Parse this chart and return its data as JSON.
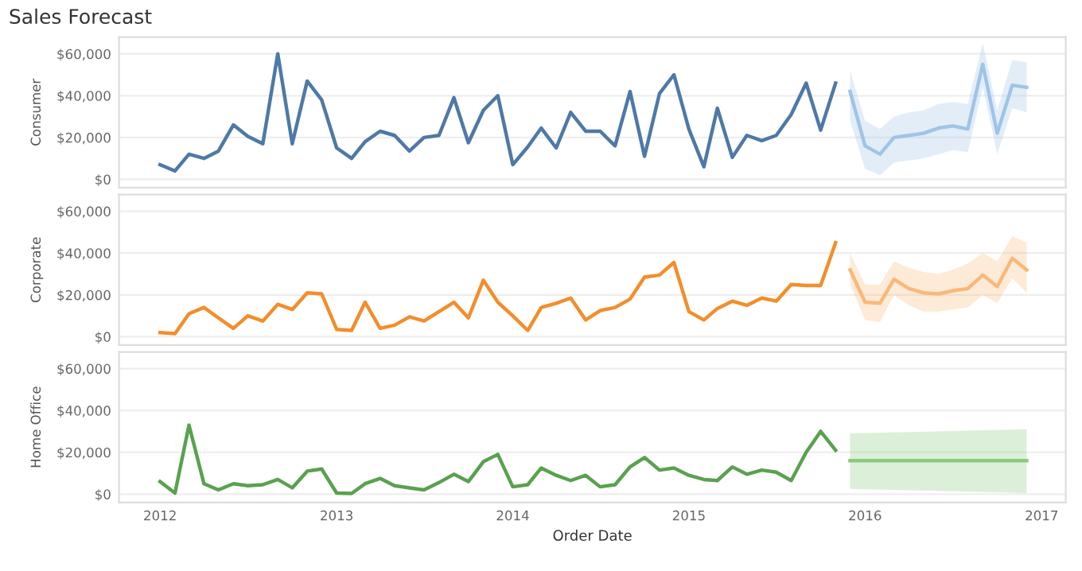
{
  "chart_data": [
    {
      "type": "line",
      "title": "Sales Forecast",
      "ylabel": "Consumer",
      "tick_labels": "y",
      "grid": "y",
      "legend": false,
      "xlim": [
        "2011-10-08",
        "2017-02-20"
      ],
      "xticks": [
        "2012",
        "2013",
        "2014",
        "2015",
        "2016",
        "2017"
      ],
      "ylim": [
        -4000,
        68000
      ],
      "yticks": [
        {
          "value": 0,
          "label": "$0"
        },
        {
          "value": 20000,
          "label": "$20,000"
        },
        {
          "value": 40000,
          "label": "$40,000"
        },
        {
          "value": 60000,
          "label": "$60,000"
        }
      ],
      "series": [
        {
          "color": "#4e79a7",
          "x": [
            "2012-01",
            "2012-02",
            "2012-03",
            "2012-04",
            "2012-05",
            "2012-06",
            "2012-07",
            "2012-08",
            "2012-09",
            "2012-10",
            "2012-11",
            "2012-12",
            "2013-01",
            "2013-02",
            "2013-03",
            "2013-04",
            "2013-05",
            "2013-06",
            "2013-07",
            "2013-08",
            "2013-09",
            "2013-10",
            "2013-11",
            "2013-12",
            "2014-01",
            "2014-02",
            "2014-03",
            "2014-04",
            "2014-05",
            "2014-06",
            "2014-07",
            "2014-08",
            "2014-09",
            "2014-10",
            "2014-11",
            "2014-12",
            "2015-01",
            "2015-02",
            "2015-03",
            "2015-04",
            "2015-05",
            "2015-06",
            "2015-07",
            "2015-08",
            "2015-09",
            "2015-10",
            "2015-11"
          ],
          "values": [
            7000,
            4000,
            12000,
            10000,
            13500,
            26000,
            20500,
            17000,
            60000,
            17000,
            47000,
            38000,
            15000,
            10000,
            18000,
            23000,
            21000,
            13500,
            20000,
            21000,
            39000,
            17500,
            33000,
            40000,
            7000,
            15500,
            24500,
            15000,
            32000,
            23000,
            23000,
            16000,
            42000,
            11000,
            41000,
            50000,
            24000,
            6000,
            34000,
            10500,
            21000,
            18500,
            21000,
            31000,
            46000,
            23500,
            46000
          ]
        },
        {
          "color": "#a0c4e8",
          "x": [
            "2015-12",
            "2016-01",
            "2016-02",
            "2016-03",
            "2016-04",
            "2016-05",
            "2016-06",
            "2016-07",
            "2016-08",
            "2016-09",
            "2016-10",
            "2016-11",
            "2016-12"
          ],
          "values": [
            42000,
            16000,
            12000,
            20000,
            21000,
            22000,
            24500,
            25500,
            24000,
            55000,
            22000,
            45000,
            44000
          ],
          "lower": [
            28000,
            5000,
            2000,
            8000,
            9000,
            10000,
            12000,
            14000,
            13000,
            44000,
            12000,
            34000,
            32000
          ],
          "upper": [
            52000,
            28000,
            24000,
            30000,
            32000,
            33000,
            36000,
            37000,
            36000,
            65000,
            33000,
            57000,
            56000
          ]
        }
      ]
    },
    {
      "type": "line",
      "ylabel": "Corporate",
      "tick_labels": "y",
      "grid": "y",
      "legend": false,
      "xlim": [
        "2011-10-08",
        "2017-02-20"
      ],
      "xticks": [
        "2012",
        "2013",
        "2014",
        "2015",
        "2016",
        "2017"
      ],
      "ylim": [
        -4000,
        68000
      ],
      "yticks": [
        {
          "value": 0,
          "label": "$0"
        },
        {
          "value": 20000,
          "label": "$20,000"
        },
        {
          "value": 40000,
          "label": "$40,000"
        },
        {
          "value": 60000,
          "label": "$60,000"
        }
      ],
      "series": [
        {
          "color": "#f28e2b",
          "x": [
            "2012-01",
            "2012-02",
            "2012-03",
            "2012-04",
            "2012-05",
            "2012-06",
            "2012-07",
            "2012-08",
            "2012-09",
            "2012-10",
            "2012-11",
            "2012-12",
            "2013-01",
            "2013-02",
            "2013-03",
            "2013-04",
            "2013-05",
            "2013-06",
            "2013-07",
            "2013-08",
            "2013-09",
            "2013-10",
            "2013-11",
            "2013-12",
            "2014-01",
            "2014-02",
            "2014-03",
            "2014-04",
            "2014-05",
            "2014-06",
            "2014-07",
            "2014-08",
            "2014-09",
            "2014-10",
            "2014-11",
            "2014-12",
            "2015-01",
            "2015-02",
            "2015-03",
            "2015-04",
            "2015-05",
            "2015-06",
            "2015-07",
            "2015-08",
            "2015-09",
            "2015-10",
            "2015-11"
          ],
          "values": [
            2000,
            1500,
            11000,
            14000,
            9000,
            4000,
            10000,
            7500,
            15500,
            13000,
            21000,
            20500,
            3500,
            3000,
            16500,
            4000,
            5500,
            9500,
            7500,
            12000,
            16500,
            9000,
            27000,
            16500,
            10000,
            3000,
            14000,
            16000,
            18500,
            8000,
            12500,
            14000,
            18000,
            28500,
            29500,
            35500,
            12000,
            8000,
            13500,
            17000,
            15000,
            18500,
            17000,
            25000,
            24500,
            24500,
            45000
          ]
        },
        {
          "color": "#f7b97a",
          "x": [
            "2015-12",
            "2016-01",
            "2016-02",
            "2016-03",
            "2016-04",
            "2016-05",
            "2016-06",
            "2016-07",
            "2016-08",
            "2016-09",
            "2016-10",
            "2016-11",
            "2016-12"
          ],
          "values": [
            32000,
            16500,
            16000,
            27500,
            23000,
            21000,
            20500,
            22000,
            23000,
            29500,
            24000,
            37500,
            32000
          ],
          "lower": [
            25000,
            8000,
            7000,
            20000,
            15000,
            12000,
            12000,
            13000,
            14000,
            20000,
            16000,
            28000,
            21000
          ],
          "upper": [
            40000,
            25000,
            25000,
            36000,
            33000,
            31000,
            30000,
            32000,
            35000,
            40000,
            36000,
            48000,
            45000
          ]
        }
      ]
    },
    {
      "type": "line",
      "ylabel": "Home Office",
      "xlabel": "Order Date",
      "grid": "y",
      "legend": false,
      "xlim": [
        "2011-10-08",
        "2017-02-20"
      ],
      "xticks": [
        "2012",
        "2013",
        "2014",
        "2015",
        "2016",
        "2017"
      ],
      "ylim": [
        -4000,
        68000
      ],
      "yticks": [
        {
          "value": 0,
          "label": "$0"
        },
        {
          "value": 20000,
          "label": "$20,000"
        },
        {
          "value": 40000,
          "label": "$40,000"
        },
        {
          "value": 60000,
          "label": "$60,000"
        }
      ],
      "series": [
        {
          "color": "#59a14f",
          "x": [
            "2012-01",
            "2012-02",
            "2012-03",
            "2012-04",
            "2012-05",
            "2012-06",
            "2012-07",
            "2012-08",
            "2012-09",
            "2012-10",
            "2012-11",
            "2012-12",
            "2013-01",
            "2013-02",
            "2013-03",
            "2013-04",
            "2013-05",
            "2013-06",
            "2013-07",
            "2013-08",
            "2013-09",
            "2013-10",
            "2013-11",
            "2013-12",
            "2014-01",
            "2014-02",
            "2014-03",
            "2014-04",
            "2014-05",
            "2014-06",
            "2014-07",
            "2014-08",
            "2014-09",
            "2014-10",
            "2014-11",
            "2014-12",
            "2015-01",
            "2015-02",
            "2015-03",
            "2015-04",
            "2015-05",
            "2015-06",
            "2015-07",
            "2015-08",
            "2015-09",
            "2015-10",
            "2015-11"
          ],
          "values": [
            6000,
            500,
            33000,
            5000,
            2000,
            5000,
            4000,
            4500,
            7000,
            3000,
            11000,
            12000,
            500,
            300,
            5000,
            7500,
            4000,
            3000,
            2000,
            5500,
            9500,
            6000,
            15500,
            19000,
            3500,
            4500,
            12500,
            9000,
            6500,
            9000,
            3500,
            4500,
            13000,
            17500,
            11500,
            12500,
            9000,
            7000,
            6500,
            13000,
            9500,
            11500,
            10500,
            6500,
            20000,
            30000,
            21000
          ]
        },
        {
          "color": "#8cc97d",
          "x": [
            "2015-12",
            "2016-12"
          ],
          "values": [
            16000,
            16000
          ],
          "lower": [
            2500,
            500
          ],
          "upper": [
            29000,
            31000
          ]
        }
      ]
    }
  ]
}
